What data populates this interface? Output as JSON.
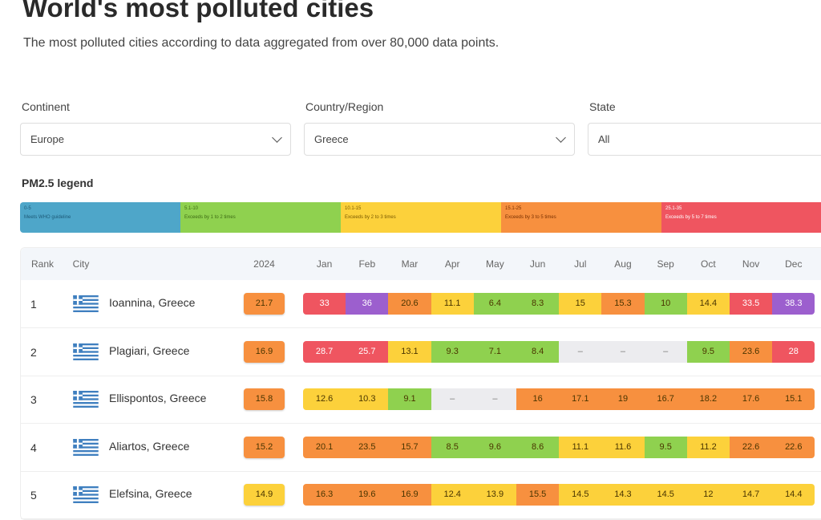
{
  "header": {
    "title": "World's most polluted cities",
    "subtitle": "The most polluted cities according to data aggregated from over 80,000 data points."
  },
  "filters": [
    {
      "label": "Continent",
      "value": "Europe",
      "has_chevron": true
    },
    {
      "label": "Country/Region",
      "value": "Greece",
      "has_chevron": true
    },
    {
      "label": "State",
      "value": "All",
      "has_chevron": false
    }
  ],
  "legend": {
    "title": "PM2.5 legend",
    "items": [
      {
        "range": "0-5",
        "desc": "Meets WHO guideline",
        "color": "#4ea6c9",
        "text": "#1d5a78"
      },
      {
        "range": "5.1-10",
        "desc": "Exceeds by 1 to 2 times",
        "color": "#8fd14f",
        "text": "#3d6b14"
      },
      {
        "range": "10.1-15",
        "desc": "Exceeds by 2 to 3 times",
        "color": "#fcd13b",
        "text": "#7a5a00"
      },
      {
        "range": "15.1-25",
        "desc": "Exceeds by 3 to 5 times",
        "color": "#f7903f",
        "text": "#7a3000"
      },
      {
        "range": "25.1-35",
        "desc": "Exceeds by 5 to 7 times",
        "color": "#ef5560",
        "text": "#ffffff"
      }
    ]
  },
  "colors": {
    "purple": "#9c5fce",
    "missing": "#ececef"
  },
  "table": {
    "headers": {
      "rank": "Rank",
      "city": "City",
      "year": "2024"
    },
    "months": [
      "Jan",
      "Feb",
      "Mar",
      "Apr",
      "May",
      "Jun",
      "Jul",
      "Aug",
      "Sep",
      "Oct",
      "Nov",
      "Dec"
    ],
    "rows": [
      {
        "rank": "1",
        "city": "Ioannina, Greece",
        "year": "21.7",
        "months": [
          "33",
          "36",
          "20.6",
          "11.1",
          "6.4",
          "8.3",
          "15",
          "15.3",
          "10",
          "14.4",
          "33.5",
          "38.3"
        ]
      },
      {
        "rank": "2",
        "city": "Plagiari, Greece",
        "year": "16.9",
        "months": [
          "28.7",
          "25.7",
          "13.1",
          "9.3",
          "7.1",
          "8.4",
          "–",
          "–",
          "–",
          "9.5",
          "23.6",
          "28"
        ]
      },
      {
        "rank": "3",
        "city": "Ellispontos, Greece",
        "year": "15.8",
        "months": [
          "12.6",
          "10.3",
          "9.1",
          "–",
          "–",
          "16",
          "17.1",
          "19",
          "16.7",
          "18.2",
          "17.6",
          "15.1"
        ]
      },
      {
        "rank": "4",
        "city": "Aliartos, Greece",
        "year": "15.2",
        "months": [
          "20.1",
          "23.5",
          "15.7",
          "8.5",
          "9.6",
          "8.6",
          "11.1",
          "11.6",
          "9.5",
          "11.2",
          "22.6",
          "22.6"
        ]
      },
      {
        "rank": "5",
        "city": "Elefsina, Greece",
        "year": "14.9",
        "months": [
          "16.3",
          "19.6",
          "16.9",
          "12.4",
          "13.9",
          "15.5",
          "14.5",
          "14.3",
          "14.5",
          "12",
          "14.7",
          "14.4"
        ]
      }
    ]
  }
}
